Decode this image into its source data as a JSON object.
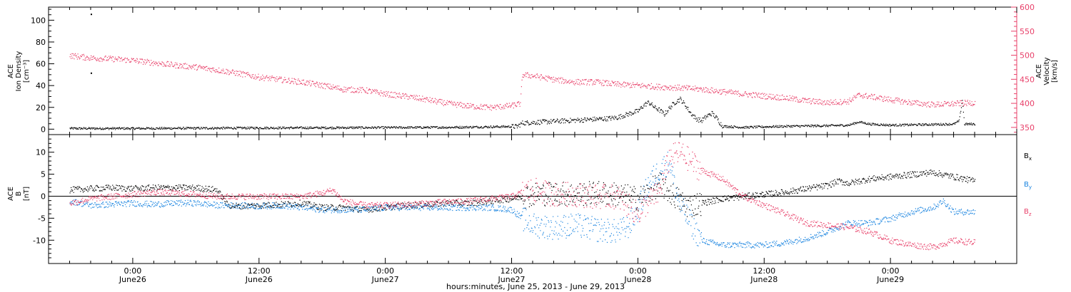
{
  "chart_data": [
    {
      "type": "scatter",
      "panel": "top",
      "ylabel_left": [
        "ACE",
        "Ion Density",
        "[cm⁻³]"
      ],
      "ylabel_right": [
        "ACE",
        "Velocity",
        "[km/s]"
      ],
      "ylim_left": [
        -5,
        112
      ],
      "yticks_left": [
        0,
        20,
        40,
        60,
        80,
        100
      ],
      "ylim_right": [
        335,
        600
      ],
      "yticks_right": [
        350,
        400,
        450,
        500,
        550,
        600
      ],
      "series": [
        {
          "axis": "left",
          "color": "#000000",
          "points": [
            [
              -6,
              1
            ],
            [
              0,
              1
            ],
            [
              6,
              1.2
            ],
            [
              12,
              1.5
            ],
            [
              18,
              1.6
            ],
            [
              24,
              1.8
            ],
            [
              30,
              2
            ],
            [
              34,
              2.5
            ],
            [
              36.5,
              2.8
            ],
            [
              37,
              6
            ],
            [
              39,
              7
            ],
            [
              41,
              8
            ],
            [
              43,
              9
            ],
            [
              45,
              10
            ],
            [
              46,
              11
            ],
            [
              47,
              14
            ],
            [
              48,
              17
            ],
            [
              48.5,
              22
            ],
            [
              49,
              25
            ],
            [
              49.6,
              20
            ],
            [
              50,
              18
            ],
            [
              50.5,
              14
            ],
            [
              51,
              20
            ],
            [
              51.5,
              25
            ],
            [
              52,
              28
            ],
            [
              52.5,
              22
            ],
            [
              53,
              15
            ],
            [
              53.5,
              10
            ],
            [
              54,
              8
            ],
            [
              54.5,
              12
            ],
            [
              55,
              15
            ],
            [
              55.5,
              10
            ],
            [
              56,
              3
            ],
            [
              58,
              2
            ],
            [
              62,
              3
            ],
            [
              66,
              3.5
            ],
            [
              68,
              4
            ],
            [
              69,
              7
            ],
            [
              70,
              5
            ],
            [
              72,
              4
            ],
            [
              75,
              4.5
            ],
            [
              78,
              5
            ],
            [
              78.5,
              8
            ],
            [
              78.8,
              27
            ],
            [
              79,
              5
            ],
            [
              80,
              5
            ]
          ],
          "outliers": [
            [
              -4,
              106
            ],
            [
              -4,
              52
            ]
          ]
        },
        {
          "axis": "right",
          "color": "#e8416a",
          "points": [
            [
              -6,
              500
            ],
            [
              -4,
              495
            ],
            [
              -2,
              493
            ],
            [
              0,
              490
            ],
            [
              2,
              485
            ],
            [
              4,
              480
            ],
            [
              6,
              476
            ],
            [
              8,
              470
            ],
            [
              10,
              463
            ],
            [
              12,
              455
            ],
            [
              14,
              450
            ],
            [
              16,
              445
            ],
            [
              18,
              438
            ],
            [
              20,
              430
            ],
            [
              22,
              428
            ],
            [
              24,
              420
            ],
            [
              26,
              415
            ],
            [
              28,
              408
            ],
            [
              30,
              400
            ],
            [
              32,
              395
            ],
            [
              34,
              392
            ],
            [
              36,
              396
            ],
            [
              36.8,
              400
            ],
            [
              37,
              460
            ],
            [
              38,
              458
            ],
            [
              40,
              450
            ],
            [
              42,
              445
            ],
            [
              44,
              445
            ],
            [
              46,
              440
            ],
            [
              48,
              438
            ],
            [
              50,
              435
            ],
            [
              52,
              433
            ],
            [
              54,
              430
            ],
            [
              56,
              425
            ],
            [
              58,
              420
            ],
            [
              60,
              416
            ],
            [
              62,
              412
            ],
            [
              64,
              406
            ],
            [
              66,
              402
            ],
            [
              68,
              405
            ],
            [
              69,
              418
            ],
            [
              70,
              415
            ],
            [
              72,
              408
            ],
            [
              74,
              402
            ],
            [
              76,
              398
            ],
            [
              78,
              400
            ],
            [
              80,
              402
            ]
          ]
        }
      ]
    },
    {
      "type": "scatter",
      "panel": "bottom",
      "ylabel_left": [
        "ACE",
        "B",
        "[nT]"
      ],
      "ylim": [
        -15.3,
        14
      ],
      "yticks": [
        -10,
        -5,
        0,
        5,
        10
      ],
      "legend": [
        {
          "label": "B",
          "sub": "x",
          "color": "#000000"
        },
        {
          "label": "B",
          "sub": "y",
          "color": "#1a84e0"
        },
        {
          "label": "B",
          "sub": "z",
          "color": "#e8416a"
        }
      ],
      "series": [
        {
          "name": "Bx",
          "color": "#000000",
          "points": [
            [
              -6,
              1.5
            ],
            [
              -4,
              1.8
            ],
            [
              -2,
              2
            ],
            [
              0,
              1.8
            ],
            [
              2,
              2
            ],
            [
              4,
              2
            ],
            [
              6,
              2
            ],
            [
              8,
              1.5
            ],
            [
              9,
              -2
            ],
            [
              10,
              -2.2
            ],
            [
              12,
              -2
            ],
            [
              14,
              -1.8
            ],
            [
              16,
              -1.5
            ],
            [
              17,
              -2
            ],
            [
              18,
              -2.5
            ],
            [
              20,
              -2.5
            ],
            [
              22,
              -3
            ],
            [
              24,
              -2.5
            ],
            [
              26,
              -2
            ],
            [
              28,
              -1.8
            ],
            [
              30,
              -1.5
            ],
            [
              32,
              -1.5
            ],
            [
              34,
              -1
            ],
            [
              36,
              -0.5
            ],
            [
              37,
              0
            ],
            [
              38,
              0.5
            ],
            [
              40,
              0.8
            ],
            [
              42,
              0.5
            ],
            [
              44,
              0.8
            ],
            [
              46,
              0.5
            ],
            [
              47,
              0
            ],
            [
              48,
              -0.5
            ],
            [
              49,
              1
            ],
            [
              50,
              3
            ],
            [
              51,
              1
            ],
            [
              52,
              -1
            ],
            [
              52.5,
              -2
            ],
            [
              53,
              -2
            ],
            [
              54,
              -1.5
            ],
            [
              56,
              -0.5
            ],
            [
              58,
              0
            ],
            [
              60,
              0.5
            ],
            [
              62,
              1
            ],
            [
              64,
              1.8
            ],
            [
              66,
              2.5
            ],
            [
              67,
              3.5
            ],
            [
              68,
              3
            ],
            [
              70,
              4
            ],
            [
              72,
              4.5
            ],
            [
              74,
              5
            ],
            [
              76,
              5.5
            ],
            [
              78,
              4.5
            ],
            [
              80,
              3.5
            ]
          ]
        },
        {
          "name": "By",
          "color": "#1a84e0",
          "points": [
            [
              -6,
              -1
            ],
            [
              -4,
              -2
            ],
            [
              -2,
              -1.8
            ],
            [
              0,
              -1.5
            ],
            [
              2,
              -1.8
            ],
            [
              4,
              -1.5
            ],
            [
              6,
              -1.5
            ],
            [
              8,
              -2
            ],
            [
              10,
              -2
            ],
            [
              12,
              -2.2
            ],
            [
              14,
              -2
            ],
            [
              16,
              -2.5
            ],
            [
              18,
              -3
            ],
            [
              20,
              -3
            ],
            [
              22,
              -3
            ],
            [
              24,
              -2.5
            ],
            [
              26,
              -2.5
            ],
            [
              28,
              -2.5
            ],
            [
              30,
              -2.5
            ],
            [
              32,
              -2.5
            ],
            [
              34,
              -2.5
            ],
            [
              36,
              -3
            ],
            [
              37,
              -5
            ],
            [
              38,
              -6.5
            ],
            [
              40,
              -7
            ],
            [
              42,
              -6.5
            ],
            [
              44,
              -7.5
            ],
            [
              46,
              -8
            ],
            [
              47,
              -7
            ],
            [
              48,
              -3
            ],
            [
              49,
              3
            ],
            [
              50,
              6
            ],
            [
              51,
              8
            ],
            [
              51.5,
              2
            ],
            [
              52,
              -2
            ],
            [
              53,
              -6
            ],
            [
              54,
              -10
            ],
            [
              56,
              -11
            ],
            [
              58,
              -11
            ],
            [
              60,
              -11
            ],
            [
              62,
              -10.5
            ],
            [
              64,
              -9.5
            ],
            [
              66,
              -8
            ],
            [
              68,
              -6
            ],
            [
              70,
              -6
            ],
            [
              72,
              -5
            ],
            [
              74,
              -3.5
            ],
            [
              76,
              -2.5
            ],
            [
              77,
              -1
            ],
            [
              78,
              -3.5
            ],
            [
              80,
              -3.5
            ]
          ]
        },
        {
          "name": "Bz",
          "color": "#e8416a",
          "points": [
            [
              -6,
              -1.5
            ],
            [
              -4,
              -0.5
            ],
            [
              -2,
              0
            ],
            [
              0,
              0.5
            ],
            [
              2,
              1
            ],
            [
              4,
              0.8
            ],
            [
              6,
              0.5
            ],
            [
              8,
              0
            ],
            [
              10,
              0
            ],
            [
              12,
              0
            ],
            [
              14,
              0
            ],
            [
              16,
              0
            ],
            [
              18,
              0.8
            ],
            [
              19,
              1.5
            ],
            [
              20,
              -1
            ],
            [
              22,
              -2
            ],
            [
              24,
              -2
            ],
            [
              26,
              -1.8
            ],
            [
              28,
              -1.5
            ],
            [
              30,
              -1.2
            ],
            [
              32,
              -1
            ],
            [
              34,
              -0.5
            ],
            [
              36,
              0
            ],
            [
              37,
              1
            ],
            [
              38,
              1.5
            ],
            [
              40,
              0.5
            ],
            [
              42,
              0.5
            ],
            [
              44,
              0
            ],
            [
              46,
              0
            ],
            [
              47,
              -2
            ],
            [
              48,
              -4
            ],
            [
              49,
              -1
            ],
            [
              50,
              1
            ],
            [
              51,
              9
            ],
            [
              52,
              10
            ],
            [
              52.5,
              9
            ],
            [
              53,
              8
            ],
            [
              54,
              6
            ],
            [
              56,
              4
            ],
            [
              57,
              2
            ],
            [
              58,
              0
            ],
            [
              60,
              -2
            ],
            [
              62,
              -4
            ],
            [
              64,
              -6
            ],
            [
              66,
              -6.5
            ],
            [
              68,
              -7
            ],
            [
              70,
              -8
            ],
            [
              72,
              -10
            ],
            [
              74,
              -11
            ],
            [
              76,
              -11.5
            ],
            [
              78,
              -10
            ],
            [
              80,
              -10.5
            ]
          ]
        }
      ]
    }
  ],
  "axis": {
    "x_range_hours": [
      -8,
      84
    ],
    "major_ticks": [
      0,
      24,
      48,
      72
    ],
    "minor_ticks_count": 12,
    "time_ticks": [
      {
        "h": 0,
        "time": "0:00",
        "date": "June26"
      },
      {
        "h": 12,
        "time": "12:00",
        "date": "June26"
      },
      {
        "h": 24,
        "time": "0:00",
        "date": "June27"
      },
      {
        "h": 36,
        "time": "12:00",
        "date": "June27"
      },
      {
        "h": 48,
        "time": "0:00",
        "date": "June28"
      },
      {
        "h": 60,
        "time": "12:00",
        "date": "June28"
      },
      {
        "h": 72,
        "time": "0:00",
        "date": "June29"
      }
    ],
    "xlabel": "hours:minutes, June 25, 2013 - June 29, 2013"
  },
  "colors": {
    "black": "#000000",
    "blue": "#1a84e0",
    "pink": "#e8416a"
  }
}
